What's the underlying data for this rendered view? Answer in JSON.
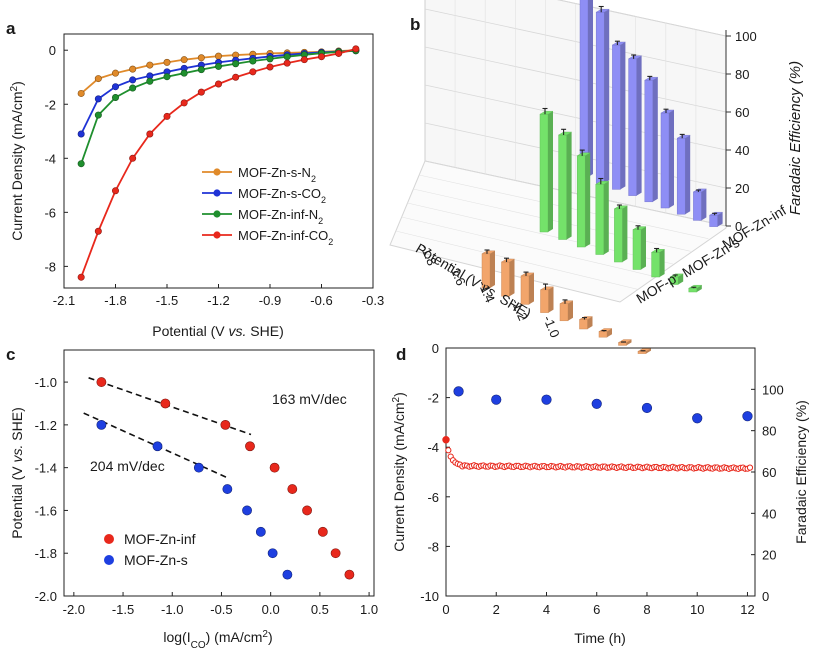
{
  "colors": {
    "orange": "#e08a2a",
    "blue": "#1f33d6",
    "green": "#1f8f2e",
    "red": "#e8281c",
    "bar_orange": "#f2a56b",
    "bar_green": "#74e26a",
    "bar_blue": "#8e8ef5",
    "dashed": "#111111",
    "dot_blue": "#1e3fe0"
  },
  "panels": {
    "a": "a",
    "b": "b",
    "c": "c",
    "d": "d"
  },
  "chart_data": [
    {
      "panel": "a",
      "type": "line",
      "xlabel_pre": "Potential (V ",
      "xlabel_italic": "vs.",
      "xlabel_post": " SHE)",
      "ylabel_pre": "Current Density (mA/cm",
      "ylabel_sup": "2",
      "ylabel_post": ")",
      "xlim": [
        -2.1,
        -0.3
      ],
      "ylim": [
        -8.8,
        0.6
      ],
      "xticks": [
        -2.1,
        -1.8,
        -1.5,
        -1.2,
        -0.9,
        -0.6,
        -0.3
      ],
      "xtick_labels": [
        "-2.1",
        "-1.8",
        "-1.5",
        "-1.2",
        "-0.9",
        "-0.6",
        "-0.3"
      ],
      "yticks": [
        0,
        -2,
        -4,
        -6,
        -8
      ],
      "ytick_labels": [
        "0",
        "-2",
        "-4",
        "-6",
        "-8"
      ],
      "series": [
        {
          "name_main": "MOF-Zn-s-N",
          "name_sub": "2",
          "color": "#e08a2a",
          "x": [
            -2.0,
            -1.9,
            -1.8,
            -1.7,
            -1.6,
            -1.5,
            -1.4,
            -1.3,
            -1.2,
            -1.1,
            -1.0,
            -0.9,
            -0.8,
            -0.7,
            -0.6,
            -0.5,
            -0.4
          ],
          "y": [
            -1.6,
            -1.05,
            -0.85,
            -0.7,
            -0.55,
            -0.45,
            -0.35,
            -0.28,
            -0.22,
            -0.18,
            -0.15,
            -0.12,
            -0.1,
            -0.08,
            -0.06,
            -0.03,
            0.0
          ]
        },
        {
          "name_main": "MOF-Zn-s-CO",
          "name_sub": "2",
          "color": "#1f33d6",
          "x": [
            -2.0,
            -1.9,
            -1.8,
            -1.7,
            -1.6,
            -1.5,
            -1.4,
            -1.3,
            -1.2,
            -1.1,
            -1.0,
            -0.9,
            -0.8,
            -0.7,
            -0.6,
            -0.5,
            -0.4
          ],
          "y": [
            -3.1,
            -1.8,
            -1.35,
            -1.1,
            -0.95,
            -0.8,
            -0.67,
            -0.55,
            -0.45,
            -0.37,
            -0.3,
            -0.23,
            -0.17,
            -0.12,
            -0.08,
            -0.05,
            -0.02
          ]
        },
        {
          "name_main": "MOF-Zn-inf-N",
          "name_sub": "2",
          "color": "#1f8f2e",
          "x": [
            -2.0,
            -1.9,
            -1.8,
            -1.7,
            -1.6,
            -1.5,
            -1.4,
            -1.3,
            -1.2,
            -1.1,
            -1.0,
            -0.9,
            -0.8,
            -0.7,
            -0.6,
            -0.5,
            -0.4
          ],
          "y": [
            -4.2,
            -2.4,
            -1.75,
            -1.4,
            -1.15,
            -0.98,
            -0.85,
            -0.72,
            -0.6,
            -0.5,
            -0.4,
            -0.32,
            -0.24,
            -0.17,
            -0.11,
            -0.06,
            -0.02
          ]
        },
        {
          "name_main": "MOF-Zn-inf-CO",
          "name_sub": "2",
          "color": "#e8281c",
          "x": [
            -2.0,
            -1.9,
            -1.8,
            -1.7,
            -1.6,
            -1.5,
            -1.4,
            -1.3,
            -1.2,
            -1.1,
            -1.0,
            -0.9,
            -0.8,
            -0.7,
            -0.6,
            -0.5,
            -0.4
          ],
          "y": [
            -8.4,
            -6.7,
            -5.2,
            -4.0,
            -3.1,
            -2.45,
            -1.95,
            -1.55,
            -1.25,
            -1.0,
            -0.8,
            -0.62,
            -0.48,
            -0.35,
            -0.24,
            -0.12,
            0.05
          ]
        }
      ]
    },
    {
      "panel": "b",
      "type": "bar3d",
      "xlabel_pre": "Potential (V ",
      "xlabel_italic": "vs.",
      "xlabel_post": " SHE)",
      "zlabel": "Faradaic Efficiency (%)",
      "categories": [
        "-1.8",
        "-1.7",
        "-1.6",
        "-1.5",
        "-1.4",
        "-1.3",
        "-1.2",
        "-1.1",
        "-1.0"
      ],
      "tick_labels": [
        "-1.8",
        "-1.6",
        "-1.4",
        "-1.2",
        "-1.0"
      ],
      "zticks": [
        0,
        20,
        40,
        60,
        80,
        100
      ],
      "zlim": [
        0,
        100
      ],
      "series": [
        {
          "name": "MOF-p",
          "color": "#f2a56b",
          "values": [
            18,
            18,
            15,
            12,
            9,
            5,
            3,
            1.5,
            1.2
          ],
          "errors": [
            2,
            2,
            2,
            3,
            2,
            1,
            0.5,
            0.3,
            0.3
          ]
        },
        {
          "name": "MOF-Zn-s",
          "color": "#74e26a",
          "values": [
            62,
            55,
            48,
            37,
            28,
            21,
            13,
            4,
            2
          ],
          "errors": [
            3,
            3,
            3,
            3,
            2,
            2,
            2,
            1,
            0.5
          ]
        },
        {
          "name": "MOF-Zn-inf",
          "color": "#8e8ef5",
          "values": [
            99,
            90,
            76,
            72,
            64,
            50,
            40,
            15,
            6
          ],
          "errors": [
            2,
            3,
            2,
            2,
            2,
            2,
            2,
            1,
            1
          ]
        }
      ]
    },
    {
      "panel": "c",
      "type": "scatter",
      "xlabel_pre": "log(I",
      "xlabel_sub": "CO",
      "xlabel_post": ") (mA/cm",
      "xlabel_sup": "2",
      "xlabel_end": ")",
      "ylabel_pre": "Potential (V ",
      "ylabel_italic": "vs.",
      "ylabel_post": " SHE)",
      "xlim": [
        -2.1,
        1.05
      ],
      "ylim": [
        -2.0,
        -0.85
      ],
      "xticks": [
        -2.0,
        -1.5,
        -1.0,
        -0.5,
        0.0,
        0.5,
        1.0
      ],
      "xtick_labels": [
        "-2.0",
        "-1.5",
        "-1.0",
        "-0.5",
        "0.0",
        "0.5",
        "1.0"
      ],
      "yticks": [
        -1.0,
        -1.2,
        -1.4,
        -1.6,
        -1.8,
        -2.0
      ],
      "ytick_labels": [
        "-1.0",
        "-1.2",
        "-1.4",
        "-1.6",
        "-1.8",
        "-2.0"
      ],
      "series": [
        {
          "name": "MOF-Zn-inf",
          "color": "#e8281c",
          "x": [
            -1.72,
            -1.07,
            -0.46,
            -0.21,
            0.04,
            0.22,
            0.37,
            0.53,
            0.66,
            0.8
          ],
          "y": [
            -1.0,
            -1.1,
            -1.2,
            -1.3,
            -1.4,
            -1.5,
            -1.6,
            -1.7,
            -1.8,
            -1.9
          ]
        },
        {
          "name": "MOF-Zn-s",
          "color": "#1e3fe0",
          "x": [
            -1.72,
            -1.15,
            -0.73,
            -0.44,
            -0.24,
            -0.1,
            0.02,
            0.17
          ],
          "y": [
            -1.2,
            -1.3,
            -1.4,
            -1.5,
            -1.6,
            -1.7,
            -1.8,
            -1.9
          ]
        }
      ],
      "fits": [
        {
          "label": "163 mV/dec",
          "color": "#e8281c",
          "x": [
            -1.85,
            -0.2
          ],
          "y": [
            -0.98,
            -1.245
          ]
        },
        {
          "label": "204 mV/dec",
          "color": "#1f33d6",
          "x": [
            -1.9,
            -0.45
          ],
          "y": [
            -1.145,
            -1.445
          ]
        }
      ]
    },
    {
      "panel": "d",
      "type": "dual-axis",
      "xlabel": "Time (h)",
      "ylabel_left_pre": "Current Density (mA/cm",
      "ylabel_left_sup": "2",
      "ylabel_left_post": ")",
      "ylabel_right": "Faradaic Efficiency (%)",
      "xlim": [
        0,
        12.3
      ],
      "ylim_left": [
        -10,
        0
      ],
      "ylim_right": [
        0,
        120
      ],
      "xticks": [
        0,
        2,
        4,
        6,
        8,
        10,
        12
      ],
      "xtick_labels": [
        "0",
        "2",
        "4",
        "6",
        "8",
        "10",
        "12"
      ],
      "yticks_left": [
        0,
        -2,
        -4,
        -6,
        -8,
        -10
      ],
      "ytick_labels_left": [
        "0",
        "-2",
        "-4",
        "-6",
        "-8",
        "-10"
      ],
      "yticks_right": [
        0,
        20,
        40,
        60,
        80,
        100
      ],
      "ytick_labels_right": [
        "0",
        "20",
        "40",
        "60",
        "80",
        "100"
      ],
      "current": {
        "color": "#e8281c",
        "start": -3.7,
        "plateau": -4.75,
        "end": -4.85,
        "duration": 12.1
      },
      "fe": {
        "color": "#1e3fe0",
        "x": [
          0.5,
          2,
          4,
          6,
          8,
          10,
          12
        ],
        "y": [
          99,
          95,
          95,
          93,
          91,
          86,
          87
        ]
      }
    }
  ]
}
